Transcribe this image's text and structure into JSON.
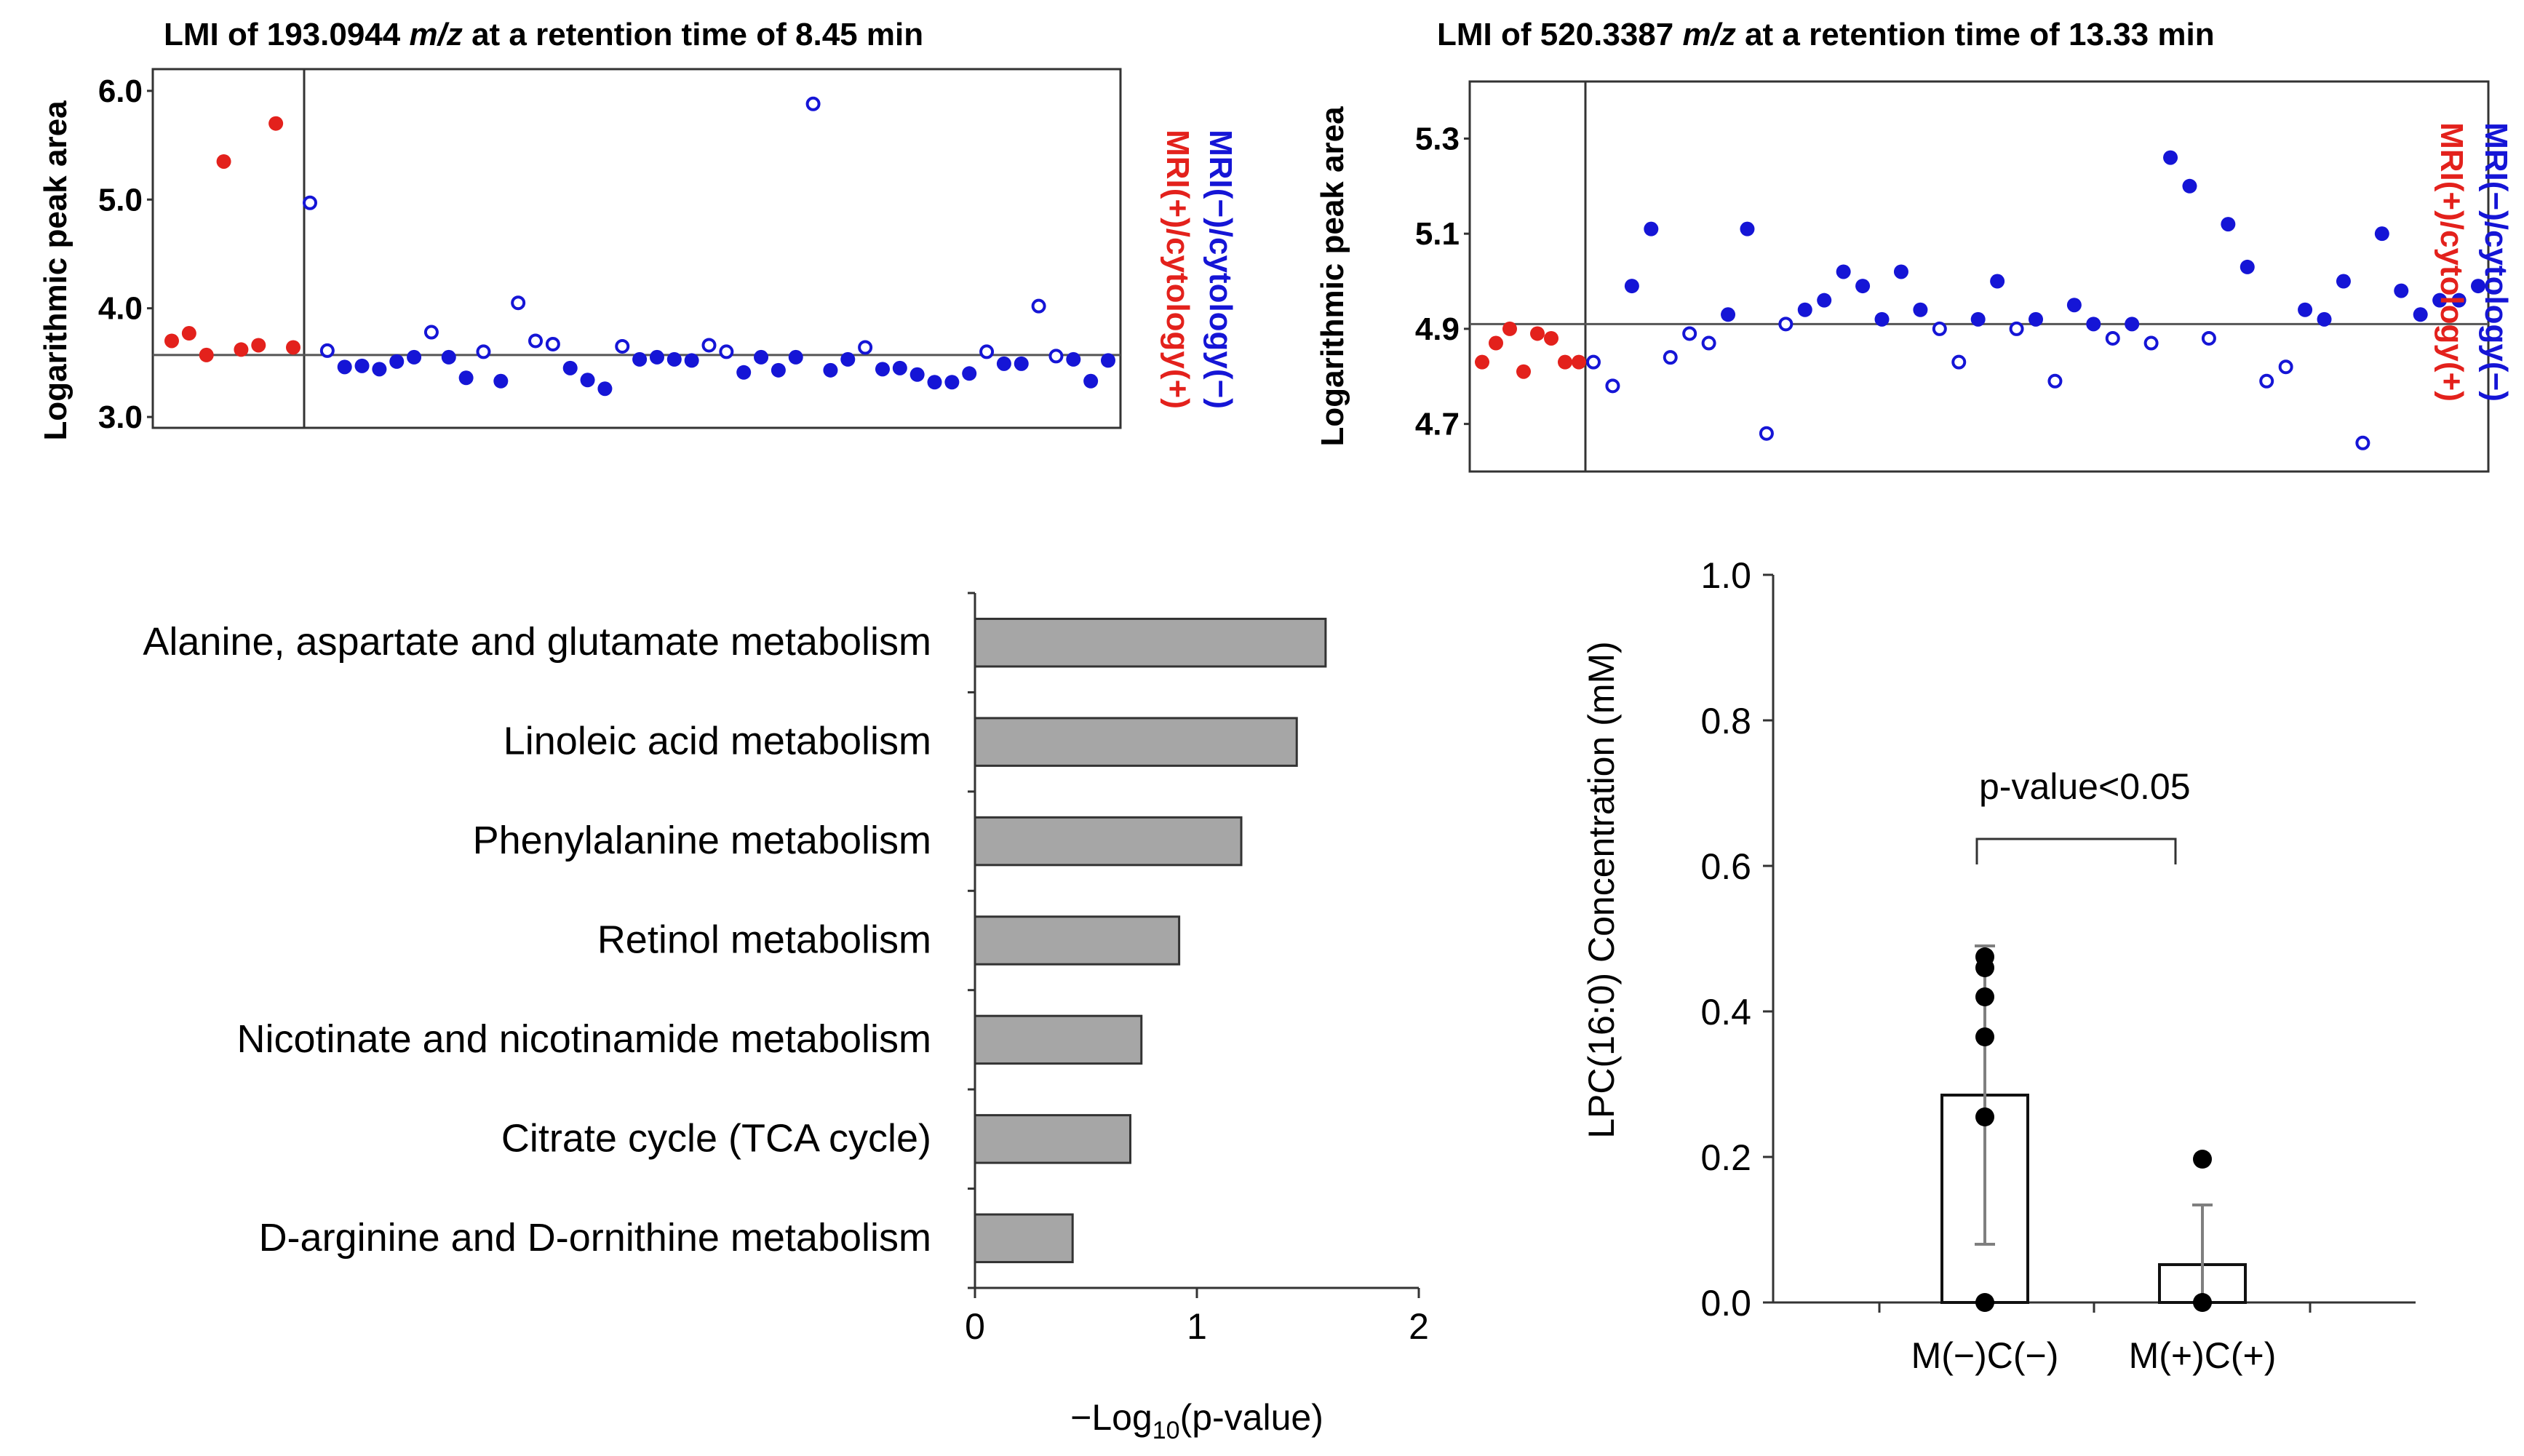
{
  "chart_data": [
    {
      "type": "scatter",
      "title_before": "LMI of 193.0944 ",
      "title_mz": "m/z",
      "title_after": " at a retention time of 8.45 min",
      "ylabel": "Logarithmic peak area",
      "ylim": [
        2.9,
        6.2
      ],
      "yticks": [
        "6.0",
        "5.0",
        "4.0",
        "3.0"
      ],
      "ytick_values": [
        6.0,
        5.0,
        4.0,
        3.0
      ],
      "reference_line": 3.57,
      "legend": [
        {
          "label": "MRI(+)/cytology(+)",
          "color": "#e3211c"
        },
        {
          "label": "MRI(−)/cytology(−)",
          "color": "#1515d6"
        }
      ],
      "group_pos": {
        "name": "MRI(+)/cytology(+)",
        "color": "#e3211c",
        "values": [
          3.7,
          3.77,
          3.57,
          5.35,
          3.62,
          3.66,
          5.7,
          3.64
        ]
      },
      "group_neg": {
        "name": "MRI(−)/cytology(−)",
        "color": "#1515d6",
        "values": [
          4.97,
          3.61,
          3.46,
          3.47,
          3.44,
          3.51,
          3.55,
          3.78,
          3.55,
          3.36,
          3.6,
          3.33,
          4.05,
          3.7,
          3.67,
          3.45,
          3.34,
          3.26,
          3.65,
          3.53,
          3.55,
          3.53,
          3.52,
          3.66,
          3.6,
          3.41,
          3.55,
          3.43,
          3.55,
          5.88,
          3.43,
          3.53,
          3.64,
          3.44,
          3.45,
          3.39,
          3.32,
          3.32,
          3.4,
          3.6,
          3.49,
          3.49,
          4.02,
          3.56,
          3.53,
          3.33,
          3.52
        ],
        "hollow": [
          true,
          true,
          false,
          false,
          false,
          false,
          false,
          true,
          false,
          false,
          true,
          false,
          true,
          true,
          true,
          false,
          false,
          false,
          true,
          false,
          false,
          false,
          false,
          true,
          true,
          false,
          false,
          false,
          false,
          true,
          false,
          false,
          true,
          false,
          false,
          false,
          false,
          false,
          false,
          true,
          false,
          false,
          true,
          true,
          false,
          false,
          false
        ]
      }
    },
    {
      "type": "scatter",
      "title_before": "LMI of 520.3387 ",
      "title_mz": "m/z",
      "title_after": " at a retention time of 13.33 min",
      "ylabel": "Logarithmic peak area",
      "ylim": [
        4.6,
        5.42
      ],
      "yticks": [
        "5.3",
        "5.1",
        "4.9",
        "4.7"
      ],
      "ytick_values": [
        5.3,
        5.1,
        4.9,
        4.7
      ],
      "reference_line": 4.91,
      "legend": [
        {
          "label": "MRI(+)/cytology(+)",
          "color": "#e3211c"
        },
        {
          "label": "MRI(−)/cytology(−)",
          "color": "#1515d6"
        }
      ],
      "group_pos": {
        "name": "MRI(+)/cytology(+)",
        "color": "#e3211c",
        "values": [
          4.83,
          4.87,
          4.9,
          4.81,
          4.89,
          4.88,
          4.83,
          4.83
        ]
      },
      "group_neg": {
        "name": "MRI(−)/cytology(−)",
        "color": "#1515d6",
        "values": [
          4.83,
          4.78,
          4.99,
          5.11,
          4.84,
          4.89,
          4.87,
          4.93,
          5.11,
          4.68,
          4.91,
          4.94,
          4.96,
          5.02,
          4.99,
          4.92,
          5.02,
          4.94,
          4.9,
          4.83,
          4.92,
          5.0,
          4.9,
          4.92,
          4.79,
          4.95,
          4.91,
          4.88,
          4.91,
          4.87,
          5.26,
          5.2,
          4.88,
          5.12,
          5.03,
          4.79,
          4.82,
          4.94,
          4.92,
          5.0,
          4.66,
          5.1,
          4.98,
          4.93,
          4.96,
          4.96,
          4.99
        ],
        "hollow": [
          true,
          true,
          false,
          false,
          true,
          true,
          true,
          false,
          false,
          true,
          true,
          false,
          false,
          false,
          false,
          false,
          false,
          false,
          true,
          true,
          false,
          false,
          true,
          false,
          true,
          false,
          false,
          true,
          false,
          true,
          false,
          false,
          true,
          false,
          false,
          true,
          true,
          false,
          false,
          false,
          true,
          false,
          false,
          false,
          false,
          false,
          false
        ]
      }
    },
    {
      "type": "bar",
      "orientation": "horizontal",
      "categories": [
        "Alanine, aspartate and glutamate metabolism",
        "Linoleic acid metabolism",
        "Phenylalanine metabolism",
        "Retinol metabolism",
        "Nicotinate and nicotinamide metabolism",
        "Citrate cycle (TCA   cycle)",
        "D-arginine and D-ornithine metabolism"
      ],
      "values": [
        1.58,
        1.45,
        1.2,
        0.92,
        0.75,
        0.7,
        0.44
      ],
      "bar_color": "#a6a6a6",
      "xlim": [
        0,
        2
      ],
      "xticks": [
        "0",
        "1",
        "2"
      ],
      "xtick_values": [
        0,
        1,
        2
      ],
      "xlabel_prefix": "−Log",
      "xlabel_sub": "10",
      "xlabel_suffix": "(p-value)"
    },
    {
      "type": "bar",
      "orientation": "vertical",
      "categories": [
        "M(−)C(−)",
        "M(+)C(+)"
      ],
      "values": [
        0.285,
        0.052
      ],
      "error": [
        0.205,
        0.082
      ],
      "points": [
        [
          0.475,
          0.46,
          0.42,
          0.365,
          0.255,
          0.0
        ],
        [
          0.197,
          0.0
        ]
      ],
      "ylabel": "LPC(16:0) Concentration (mM)",
      "ylim": [
        0,
        1.0
      ],
      "yticks": [
        "0.0",
        "0.2",
        "0.4",
        "0.6",
        "0.8",
        "1.0"
      ],
      "ytick_values": [
        0,
        0.2,
        0.4,
        0.6,
        0.8,
        1.0
      ],
      "significance_label": "p-value<0.05"
    }
  ]
}
